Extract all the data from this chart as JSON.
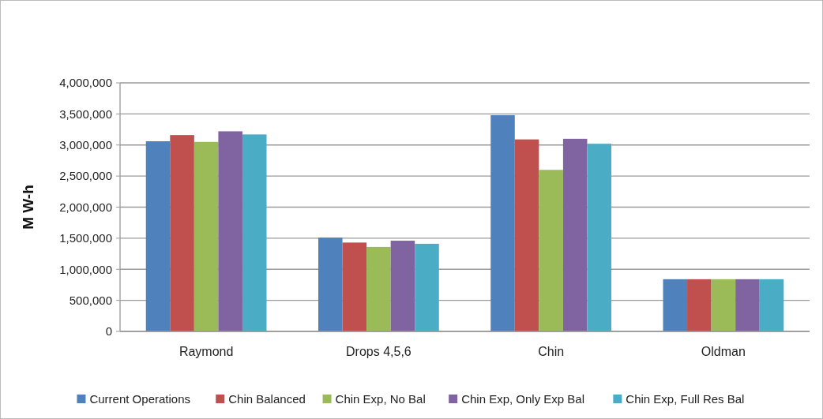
{
  "chart_data": {
    "type": "bar",
    "ylabel": "M W-h",
    "categories": [
      "Raymond",
      "Drops 4,5,6",
      "Chin",
      "Oldman"
    ],
    "series": [
      {
        "name": "Current Operations",
        "color": "#4f81bd",
        "values": [
          3060000,
          1510000,
          3480000,
          840000
        ]
      },
      {
        "name": "Chin Balanced",
        "color": "#c0504d",
        "values": [
          3160000,
          1430000,
          3090000,
          840000
        ]
      },
      {
        "name": "Chin Exp, No Bal",
        "color": "#9bbb59",
        "values": [
          3050000,
          1360000,
          2600000,
          840000
        ]
      },
      {
        "name": "Chin Exp, Only Exp Bal",
        "color": "#8064a2",
        "values": [
          3220000,
          1460000,
          3100000,
          840000
        ]
      },
      {
        "name": "Chin Exp, Full Res Bal",
        "color": "#4bacc6",
        "values": [
          3170000,
          1410000,
          3020000,
          840000
        ]
      }
    ],
    "ylim": [
      0,
      4000000
    ],
    "yticks": [
      {
        "value": 0,
        "label": "0"
      },
      {
        "value": 500000,
        "label": "500,000"
      },
      {
        "value": 1000000,
        "label": "1,000,000"
      },
      {
        "value": 1500000,
        "label": "1,500,000"
      },
      {
        "value": 2000000,
        "label": "2,000,000"
      },
      {
        "value": 2500000,
        "label": "2,500,000"
      },
      {
        "value": 3000000,
        "label": "3,000,000"
      },
      {
        "value": 3500000,
        "label": "3,500,000"
      },
      {
        "value": 4000000,
        "label": "4,000,000"
      }
    ],
    "grid": "y",
    "legend": "bottom"
  }
}
